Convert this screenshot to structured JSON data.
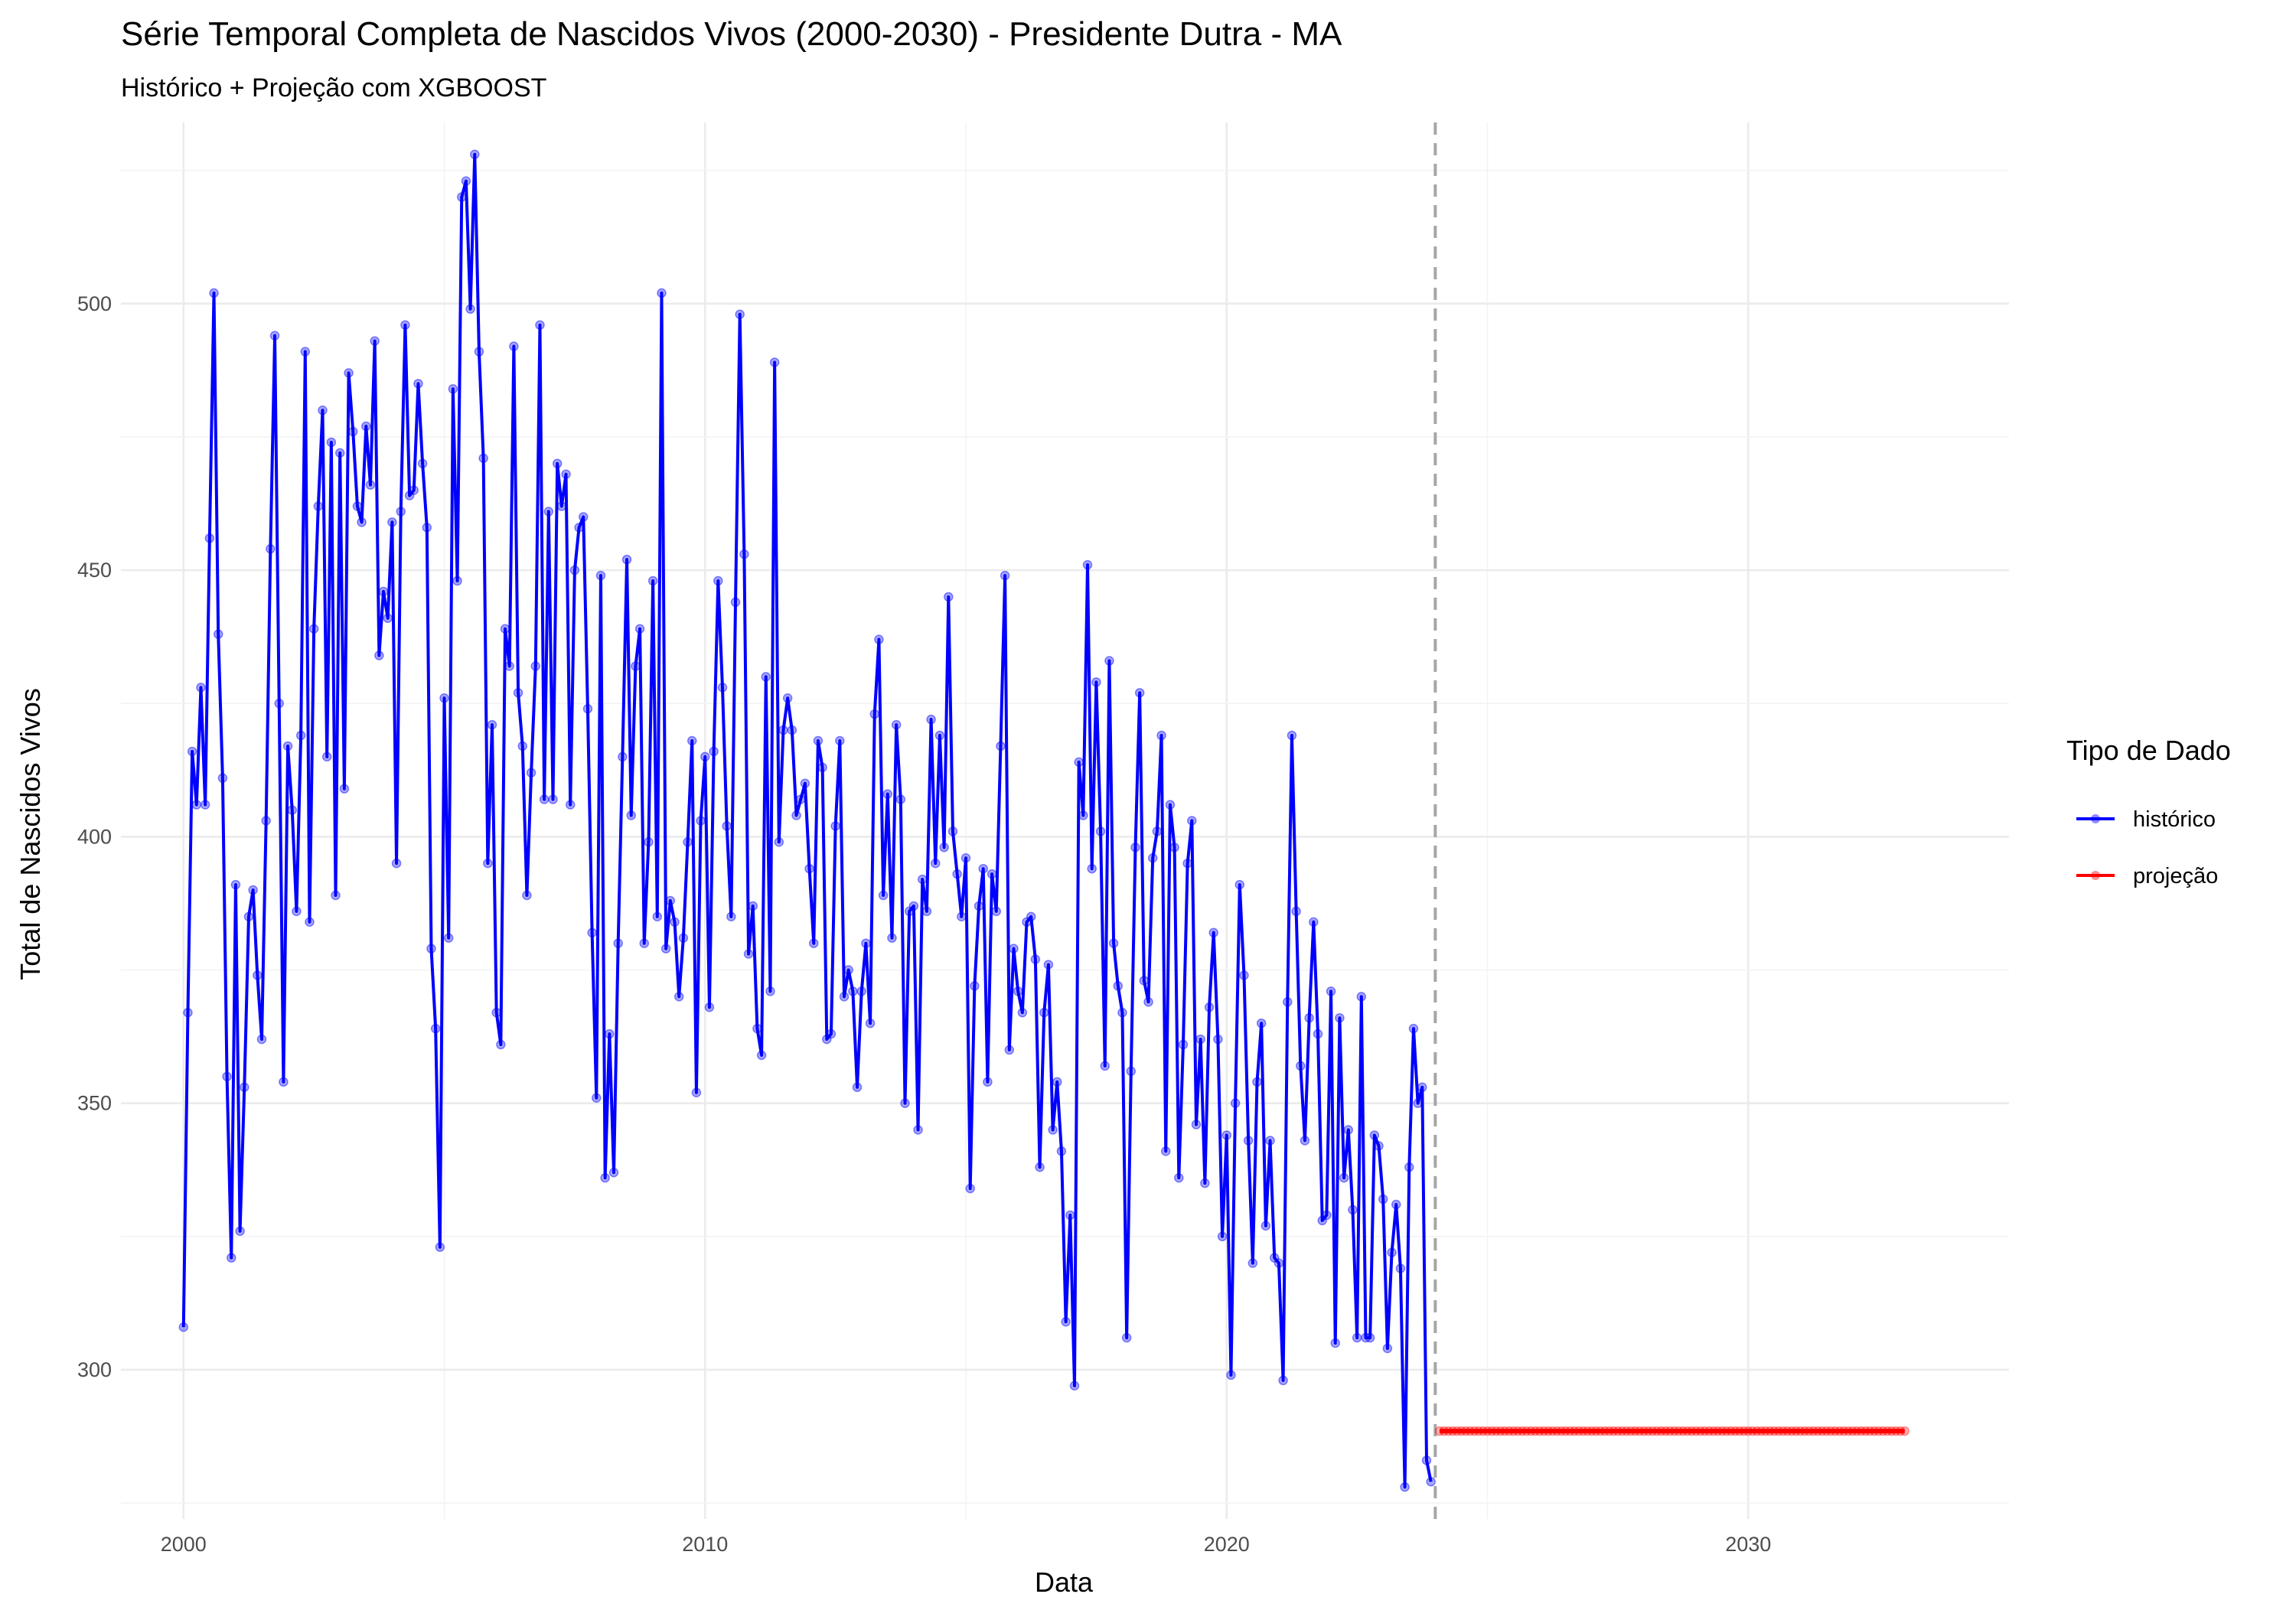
{
  "chart_data": {
    "type": "line",
    "title": "Série Temporal Completa de Nascidos Vivos (2000-2030) -  Presidente Dutra - MA",
    "subtitle": "Histórico + Projeção com XGBOOST",
    "xlabel": "Data",
    "ylabel": "Total de Nascidos Vivos",
    "xlim": [
      1998.8,
      2035.0
    ],
    "ylim": [
      272,
      534
    ],
    "x_ticks": [
      2000,
      2010,
      2020,
      2030
    ],
    "x_tick_labels": [
      "2000",
      "2010",
      "2020",
      "2030"
    ],
    "y_ticks": [
      300,
      350,
      400,
      450,
      500
    ],
    "y_tick_labels": [
      "300",
      "350",
      "400",
      "450",
      "500"
    ],
    "grid": true,
    "legend_position": "right",
    "legend_title": "Tipo de Dado",
    "cutoff_x": 2024.0,
    "series": [
      {
        "name": "histórico",
        "color": "#0000ff",
        "x_start": 2000.0,
        "x_step_months": 1,
        "values": [
          308,
          367,
          416,
          406,
          428,
          406,
          456,
          502,
          438,
          411,
          355,
          321,
          391,
          326,
          353,
          385,
          390,
          374,
          362,
          403,
          454,
          494,
          425,
          354,
          417,
          405,
          386,
          419,
          491,
          384,
          439,
          462,
          480,
          415,
          474,
          389,
          472,
          409,
          487,
          476,
          462,
          459,
          477,
          466,
          493,
          434,
          446,
          441,
          459,
          395,
          461,
          496,
          464,
          465,
          485,
          470,
          458,
          379,
          364,
          323,
          426,
          381,
          484,
          448,
          520,
          523,
          499,
          528,
          491,
          471,
          395,
          421,
          367,
          361,
          439,
          432,
          492,
          427,
          417,
          389,
          412,
          432,
          496,
          407,
          461,
          407,
          470,
          462,
          468,
          406,
          450,
          458,
          460,
          424,
          382,
          351,
          449,
          336,
          363,
          337,
          380,
          415,
          452,
          404,
          432,
          439,
          380,
          399,
          448,
          385,
          502,
          379,
          388,
          384,
          370,
          381,
          399,
          418,
          352,
          403,
          415,
          368,
          416,
          448,
          428,
          402,
          385,
          444,
          498,
          453,
          378,
          387,
          364,
          359,
          430,
          371,
          489,
          399,
          420,
          426,
          420,
          404,
          407,
          410,
          394,
          380,
          418,
          413,
          362,
          363,
          402,
          418,
          370,
          375,
          371,
          353,
          371,
          380,
          365,
          423,
          437,
          389,
          408,
          381,
          421,
          407,
          350,
          386,
          387,
          345,
          392,
          386,
          422,
          395,
          419,
          398,
          445,
          401,
          393,
          385,
          396,
          334,
          372,
          387,
          394,
          354,
          393,
          386,
          417,
          449,
          360,
          379,
          371,
          367,
          384,
          385,
          377,
          338,
          367,
          376,
          345,
          354,
          341,
          309,
          329,
          297,
          414,
          404,
          451,
          394,
          429,
          401,
          357,
          433,
          380,
          372,
          367,
          306,
          356,
          398,
          427,
          373,
          369,
          396,
          401,
          419,
          341,
          406,
          398,
          336,
          361,
          395,
          403,
          346,
          362,
          335,
          368,
          382,
          362,
          325,
          344,
          299,
          350,
          391,
          374,
          343,
          320,
          354,
          365,
          327,
          343,
          321,
          320,
          298,
          369,
          419,
          386,
          357,
          343,
          366,
          384,
          363,
          328,
          329,
          371,
          305,
          366,
          336,
          345,
          330,
          306,
          370,
          306,
          306,
          344,
          342,
          332,
          304,
          322,
          331,
          319,
          278,
          338,
          364,
          350,
          353,
          283,
          279
        ]
      },
      {
        "name": "projeção",
        "color": "#ff0000",
        "x_start": 2024.0833,
        "x_step_months": 1,
        "constant_value": 288.5,
        "count": 108
      }
    ]
  }
}
